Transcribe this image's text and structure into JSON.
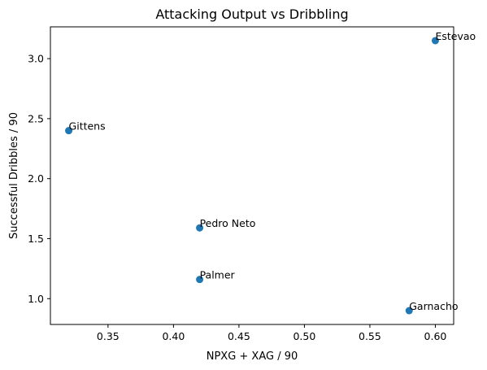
{
  "chart_data": {
    "type": "scatter",
    "title": "Attacking Output vs Dribbling",
    "xlabel": "NPXG + XAG / 90",
    "ylabel": "Successful Dribbles / 90",
    "xlim": [
      0.306,
      0.614
    ],
    "ylim": [
      0.785,
      3.265
    ],
    "xticks": [
      0.35,
      0.4,
      0.45,
      0.5,
      0.55,
      0.6
    ],
    "xtick_labels": [
      "0.35",
      "0.40",
      "0.45",
      "0.50",
      "0.55",
      "0.60"
    ],
    "yticks": [
      1.0,
      1.5,
      2.0,
      2.5,
      3.0
    ],
    "ytick_labels": [
      "1.0",
      "1.5",
      "2.0",
      "2.5",
      "3.0"
    ],
    "grid": false,
    "marker_color": "#1f77b4",
    "points": [
      {
        "label": "Estevao",
        "x": 0.6,
        "y": 3.15
      },
      {
        "label": "Gittens",
        "x": 0.32,
        "y": 2.4
      },
      {
        "label": "Pedro Neto",
        "x": 0.42,
        "y": 1.59
      },
      {
        "label": "Palmer",
        "x": 0.42,
        "y": 1.16
      },
      {
        "label": "Garnacho",
        "x": 0.58,
        "y": 0.9
      }
    ]
  }
}
